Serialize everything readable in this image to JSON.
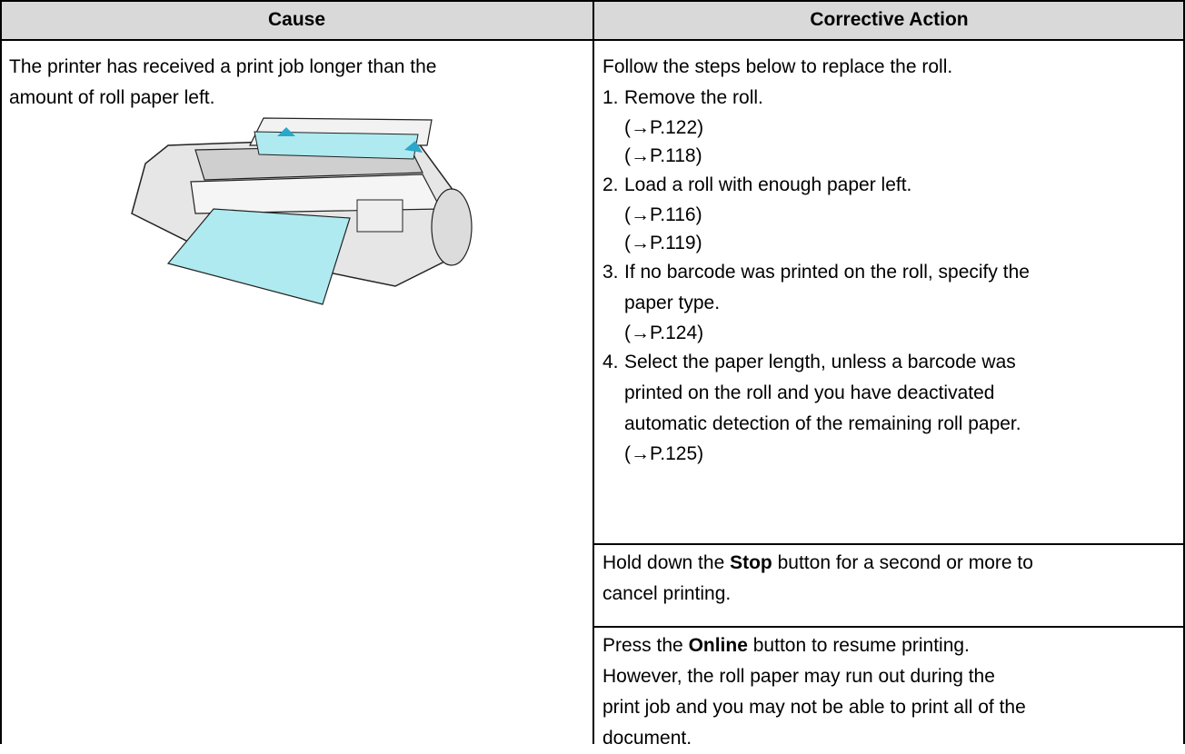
{
  "table": {
    "headers": [
      "Cause",
      "Corrective Action"
    ],
    "cause": [
      "The printer has received a print job longer than the",
      "amount of roll paper left."
    ],
    "action_intro": "Follow the steps below to replace the roll.",
    "steps": [
      {
        "number": "1.",
        "text": [
          "Remove the roll."
        ],
        "refs": [
          "(→P.122)",
          "(→P.118)"
        ]
      },
      {
        "number": "2.",
        "text": [
          "Load a roll with enough paper left."
        ],
        "refs": [
          "(→P.116)",
          "(→P.119)"
        ]
      },
      {
        "number": "3.",
        "text": [
          "If no barcode was printed on the roll, specify the",
          "paper type."
        ],
        "refs": [
          "(→P.124)"
        ]
      },
      {
        "number": "4.",
        "text": [
          "Select the paper length, unless a barcode was",
          "printed on the roll and you have deactivated",
          "automatic detection of the remaining roll paper."
        ],
        "refs": [
          "(→P.125)"
        ]
      }
    ],
    "stop_action": {
      "before": "Hold down the",
      "bold": "Stop",
      "after": "button for a second or more to",
      "lines": [
        "cancel printing."
      ]
    },
    "online_action": {
      "before": "Press the",
      "bold": "Online",
      "after": "button to resume printing.",
      "lines": [
        "However, the roll paper may run out during the",
        "print job and you may not be able to print all of the",
        "document."
      ]
    }
  }
}
